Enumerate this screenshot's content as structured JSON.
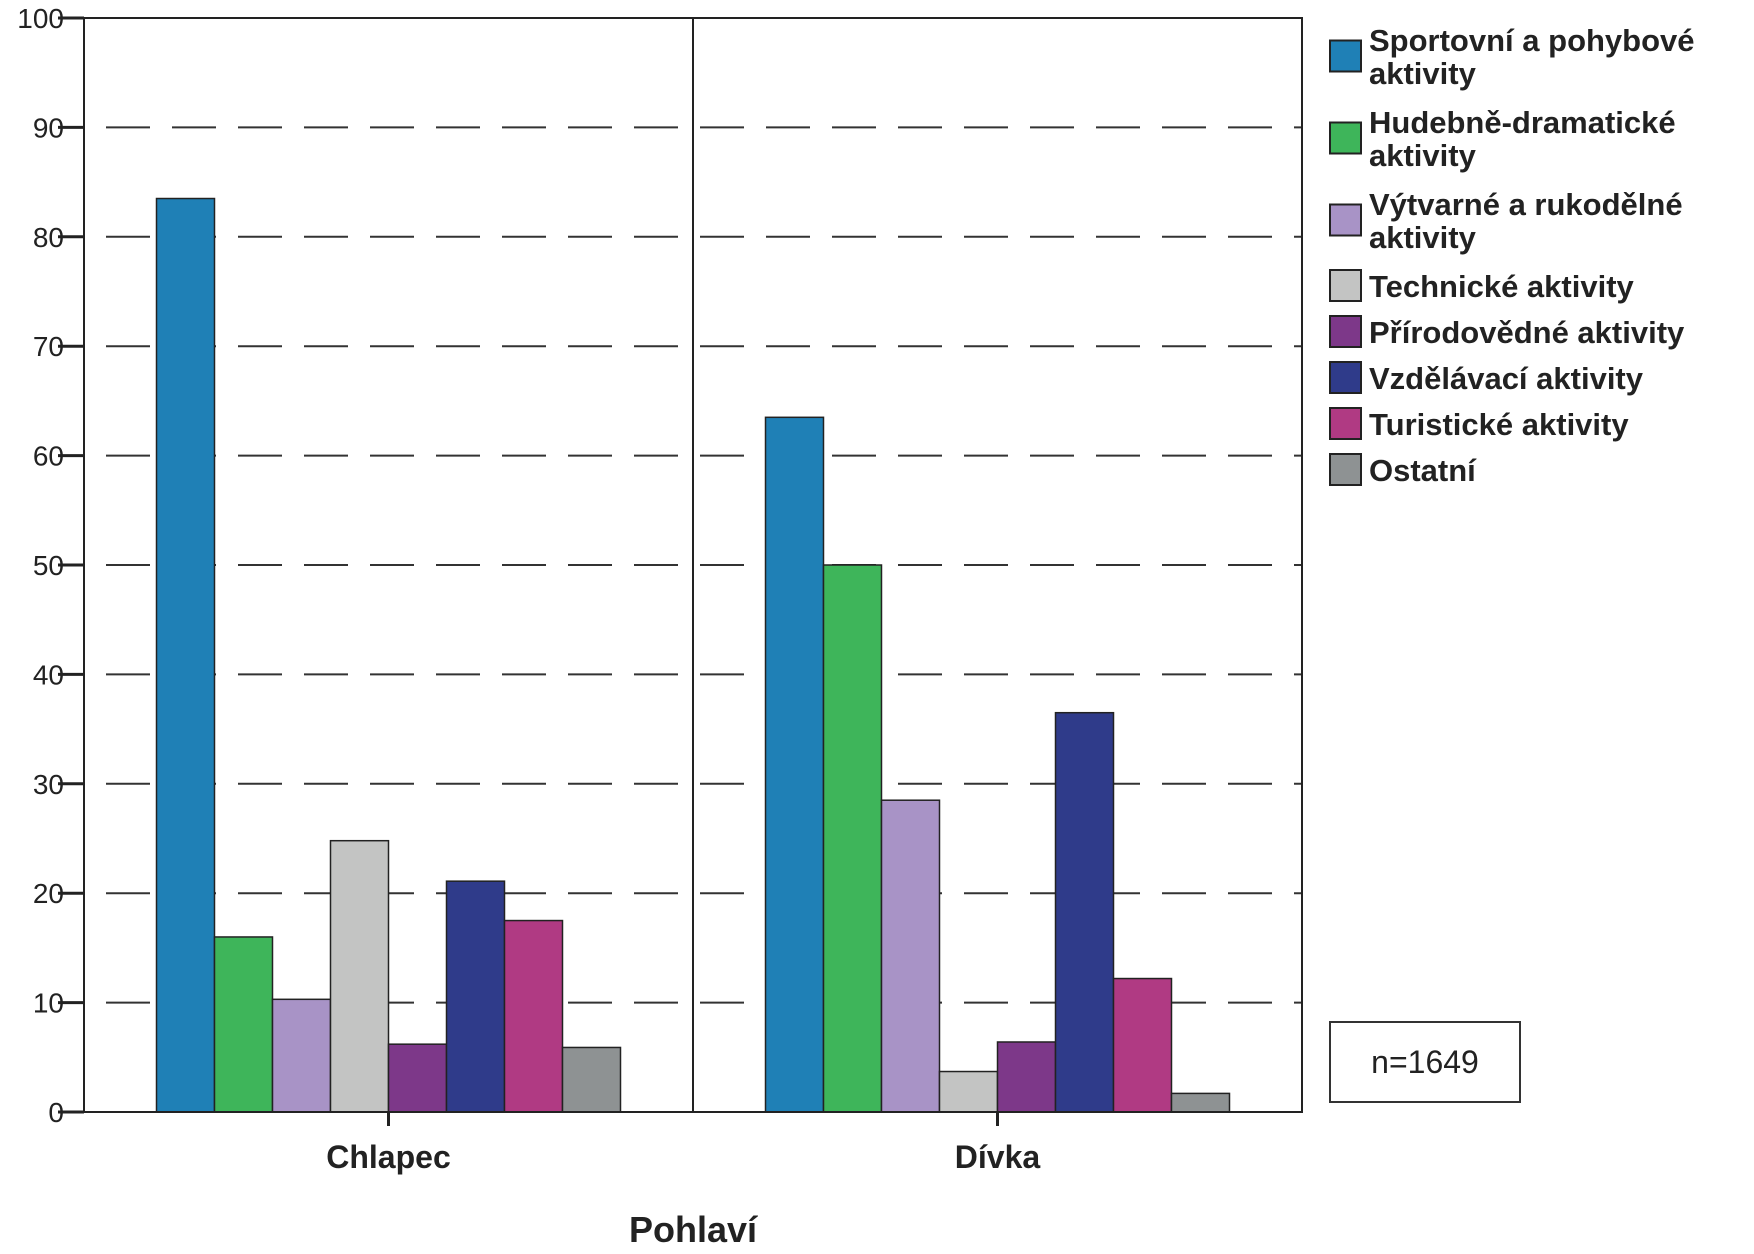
{
  "chart_data": {
    "type": "bar",
    "categories": [
      "Chlapec",
      "Dívka"
    ],
    "xlabel": "Pohlaví",
    "ylabel": "",
    "ylim": [
      0,
      100
    ],
    "yticks": [
      0,
      10,
      20,
      30,
      40,
      50,
      60,
      70,
      80,
      90,
      100
    ],
    "grid": "dashed horizontal",
    "legend_position": "right",
    "series": [
      {
        "name": "Sportovní a pohybové aktivity",
        "lines": [
          "Sportovní a pohybové",
          "aktivity"
        ],
        "color": "#1f80b6",
        "values": [
          83.5,
          63.5
        ]
      },
      {
        "name": "Hudebně-dramatické aktivity",
        "lines": [
          "Hudebně-dramatické",
          "aktivity"
        ],
        "color": "#3eb55a",
        "values": [
          16.0,
          50.0
        ]
      },
      {
        "name": "Výtvarné a rukodělné aktivity",
        "lines": [
          "Výtvarné a rukodělné",
          "aktivity"
        ],
        "color": "#a893c6",
        "values": [
          10.3,
          28.5
        ]
      },
      {
        "name": "Technické aktivity",
        "lines": [
          "Technické aktivity"
        ],
        "color": "#c3c4c3",
        "values": [
          24.8,
          3.7
        ]
      },
      {
        "name": "Přírodovědné aktivity",
        "lines": [
          "Přírodovědné aktivity"
        ],
        "color": "#7d3889",
        "values": [
          6.2,
          6.4
        ]
      },
      {
        "name": "Vzdělávací aktivity",
        "lines": [
          "Vzdělávací aktivity"
        ],
        "color": "#2f3b8a",
        "values": [
          21.1,
          36.5
        ]
      },
      {
        "name": "Turistické aktivity",
        "lines": [
          "Turistické aktivity"
        ],
        "color": "#b03a83",
        "values": [
          17.5,
          12.2
        ]
      },
      {
        "name": "Ostatní",
        "lines": [
          "Ostatní"
        ],
        "color": "#8e9293",
        "values": [
          5.9,
          1.7
        ]
      }
    ],
    "annotation": "n=1649"
  }
}
